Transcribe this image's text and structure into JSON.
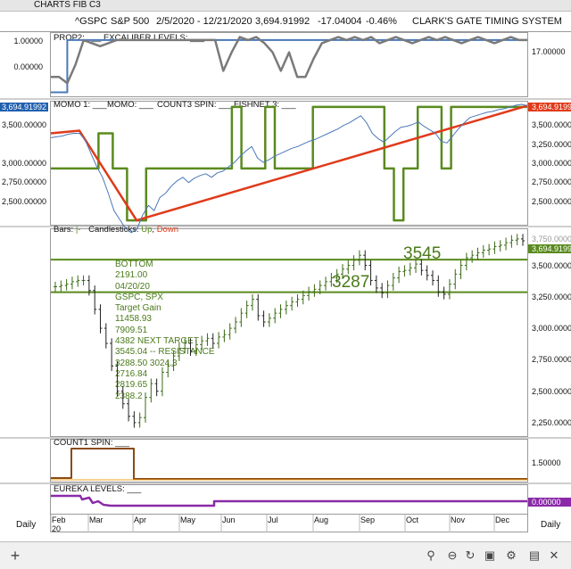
{
  "window": {
    "title": "CHARTS FIB C3"
  },
  "header": {
    "symbol": "^GSPC",
    "name": "S&P 500",
    "date_range": "2/5/2020 - 12/21/2020",
    "last": "3,694.91992",
    "change": "-17.04004",
    "change_pct": "-0.46%",
    "system": "CLARK'S GATE TIMING SYSTEM"
  },
  "colors": {
    "green": "#5a8a1e",
    "red": "#e03a1a",
    "blue": "#4a78b8",
    "gray": "#7a7a7a",
    "purple": "#8a2aa8",
    "brown": "#8a4a14",
    "orange": "#f0a020",
    "annot_green": "#4a7a1a"
  },
  "panels": {
    "prop": {
      "label": "PROP2: ___  EXCALIBER LEVELS: ___",
      "left_ticks": [
        "1.00000",
        "0.00000"
      ],
      "right_value": "17.00000",
      "prop2": [
        0.3,
        0.3,
        0.2,
        0.5,
        0.9,
        0.85,
        0.8,
        0.85,
        0.9,
        0.9,
        0.9,
        0.9,
        0.9,
        0.9,
        0.9,
        0.9,
        0.9,
        0.9,
        0.9,
        0.9,
        0.9,
        0.4,
        0.7,
        0.95,
        0.9,
        0.95,
        0.85,
        0.7,
        0.4,
        0.7,
        0.3,
        0.3,
        0.6,
        0.85,
        0.9,
        0.95,
        0.9,
        0.95,
        0.9,
        0.95,
        0.85,
        0.9,
        0.95,
        0.9,
        0.85,
        0.9,
        0.95,
        0.9,
        0.95,
        0.9,
        0.85,
        0.9,
        0.95,
        0.9,
        0.85,
        0.9,
        0.95,
        0.9,
        0.9
      ],
      "excaliber": [
        0.05,
        0.05,
        0.9,
        0.9,
        0.9,
        0.9,
        0.9,
        0.9,
        0.9,
        0.9,
        0.9,
        0.9,
        0.9,
        0.9,
        0.9,
        0.9,
        0.9,
        0.9,
        0.9,
        0.9,
        0.9,
        0.9,
        0.9,
        0.9,
        0.9,
        0.9,
        0.9,
        0.9,
        0.9,
        0.9,
        0.9,
        0.9,
        0.9,
        0.9,
        0.9,
        0.9,
        0.9,
        0.9,
        0.9,
        0.9,
        0.9,
        0.9,
        0.9,
        0.9,
        0.9,
        0.9,
        0.9,
        0.9,
        0.9,
        0.9,
        0.9,
        0.9,
        0.9,
        0.9,
        0.9,
        0.9,
        0.9,
        0.9,
        0.9
      ]
    },
    "momo": {
      "label_momo1": "MOMO 1: ___",
      "label_momo": "MOMO: ___",
      "label_count3": "COUNT3 SPIN: ___",
      "label_fishnet": "FISHNET 3: ___",
      "left_ticks": [
        "3,694.91992",
        "3,500.00000",
        "3,000.00000",
        "2,750.00000",
        "2,500.00000"
      ],
      "right_ticks": [
        "3,694.9199",
        "3,500.0000",
        "3,250.0000",
        "3,000.0000",
        "2,750.0000",
        "2,500.0000"
      ],
      "ylim": [
        2350,
        3720
      ],
      "momo_red": [
        {
          "x": 0,
          "y": 3380
        },
        {
          "x": 0.06,
          "y": 3410
        },
        {
          "x": 0.18,
          "y": 2390
        },
        {
          "x": 1.0,
          "y": 3695
        }
      ],
      "count3_green": [
        [
          0,
          2980
        ],
        [
          0.1,
          2980
        ],
        [
          0.1,
          3380
        ],
        [
          0.13,
          3380
        ],
        [
          0.13,
          2980
        ],
        [
          0.16,
          2980
        ],
        [
          0.16,
          2390
        ],
        [
          0.2,
          2390
        ],
        [
          0.2,
          2980
        ],
        [
          0.38,
          2980
        ],
        [
          0.38,
          3680
        ],
        [
          0.4,
          3680
        ],
        [
          0.4,
          2980
        ],
        [
          0.45,
          2980
        ],
        [
          0.45,
          3680
        ],
        [
          0.47,
          3680
        ],
        [
          0.47,
          2980
        ],
        [
          0.55,
          2980
        ],
        [
          0.55,
          3680
        ],
        [
          0.7,
          3680
        ],
        [
          0.7,
          2980
        ],
        [
          0.72,
          2980
        ],
        [
          0.72,
          2390
        ],
        [
          0.74,
          2390
        ],
        [
          0.74,
          2980
        ],
        [
          0.77,
          2980
        ],
        [
          0.77,
          3680
        ],
        [
          0.82,
          3680
        ],
        [
          0.82,
          2980
        ],
        [
          0.84,
          2980
        ],
        [
          0.84,
          3680
        ],
        [
          1.0,
          3680
        ]
      ]
    },
    "price": {
      "label": "Bars: |-  Candlesticks: Up, Down",
      "label_bars": "Bars:",
      "label_candles": "Candlesticks:",
      "label_up": "Up",
      "label_down": "Down",
      "right_ticks": [
        "3,694.9199",
        "3,500.0000",
        "3,250.0000",
        "3,000.0000",
        "2,750.0000",
        "2,500.0000",
        "2,250.0000"
      ],
      "top_tick_partial": "3,750.0000",
      "ylim": [
        2150,
        3780
      ],
      "lines": [
        {
          "label": "3545",
          "value": 3545
        },
        {
          "label": "3287",
          "value": 3287
        }
      ],
      "annotation": [
        "BOTTOM",
        "2191.00",
        "04/20/20",
        "GSPC, SPX",
        "Target Gain",
        "11458.93",
        "7909.51",
        "4382 NEXT TARGET",
        "3545.04 -- RESISTANCE",
        "3288.50 3024.3",
        "2716.84",
        "2819.65",
        "2388.2"
      ],
      "closes": [
        3330,
        3340,
        3350,
        3370,
        3380,
        3380,
        3300,
        3150,
        3000,
        2880,
        2700,
        2500,
        2400,
        2300,
        2250,
        2290,
        2450,
        2560,
        2500,
        2650,
        2700,
        2780,
        2840,
        2880,
        2820,
        2870,
        2900,
        2920,
        2880,
        2930,
        2950,
        3000,
        3050,
        3120,
        3180,
        3230,
        3100,
        3050,
        3080,
        3120,
        3150,
        3180,
        3210,
        3230,
        3260,
        3290,
        3310,
        3340,
        3370,
        3400,
        3430,
        3470,
        3500,
        3540,
        3580,
        3500,
        3380,
        3320,
        3280,
        3340,
        3400,
        3450,
        3460,
        3480,
        3510,
        3460,
        3420,
        3380,
        3290,
        3270,
        3350,
        3430,
        3500,
        3560,
        3580,
        3600,
        3620,
        3630,
        3650,
        3660,
        3680,
        3700,
        3710,
        3695
      ]
    },
    "count1": {
      "label": "COUNT1 SPIN: ___",
      "right_tick": "1.50000"
    },
    "eureka": {
      "label": "EUREKA LEVELS: ___",
      "right_tick": "0.00000"
    }
  },
  "x_axis": {
    "months": [
      "Feb",
      "Mar",
      "Apr",
      "May",
      "Jun",
      "Jul",
      "Aug",
      "Sep",
      "Oct",
      "Nov",
      "Dec"
    ],
    "first_day": "20",
    "left_label": "Daily",
    "right_label": "Daily"
  },
  "chart_data": {
    "type": "line",
    "title": "S&P 500",
    "x": [
      "Feb",
      "Mar",
      "Apr",
      "May",
      "Jun",
      "Jul",
      "Aug",
      "Sep",
      "Oct",
      "Nov",
      "Dec"
    ],
    "series": [
      {
        "name": "^GSPC",
        "values": [
          3380,
          2800,
          2700,
          2950,
          3100,
          3230,
          3400,
          3450,
          3350,
          3500,
          3690
        ]
      }
    ],
    "ylim": [
      2150,
      3780
    ],
    "annotations": [
      "3545",
      "3287"
    ]
  }
}
